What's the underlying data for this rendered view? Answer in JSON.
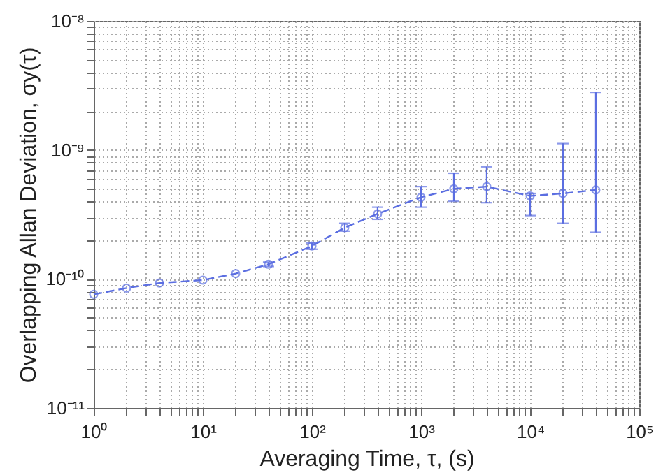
{
  "chart_data": {
    "type": "line",
    "xlabel": "Averaging Time, τ, (s)",
    "ylabel": "Overlapping Allan Deviation, σy(τ)",
    "x": [
      1,
      2,
      4,
      10,
      20,
      40,
      100,
      200,
      400,
      1000,
      2000,
      4000,
      10000,
      20000,
      40000
    ],
    "series": [
      {
        "color": "#5b6ee1",
        "values": [
          7.6e-11,
          8.5e-11,
          9.3e-11,
          9.8e-11,
          1.1e-10,
          1.3e-10,
          1.8e-10,
          2.5e-10,
          3.2e-10,
          4.3e-10,
          5e-10,
          5.2e-10,
          4.4e-10,
          4.6e-10,
          4.9e-10
        ],
        "errors": [
          null,
          null,
          null,
          null,
          null,
          [
            1.25e-10,
            1.35e-10
          ],
          [
            1.7e-10,
            1.9e-10
          ],
          [
            2.35e-10,
            2.7e-10
          ],
          [
            2.9e-10,
            3.6e-10
          ],
          [
            3.6e-10,
            5.2e-10
          ],
          [
            4e-10,
            6.6e-10
          ],
          [
            3.9e-10,
            7.4e-10
          ],
          [
            3.1e-10,
            4.6e-10
          ],
          [
            2.7e-10,
            1.12e-09
          ],
          [
            2.3e-10,
            2.8e-09
          ]
        ]
      }
    ],
    "log": "xy",
    "marker": "circle",
    "line_style": "dashed",
    "grid": true,
    "xlim": [
      1,
      100000
    ],
    "ylim": [
      1e-11,
      1e-08
    ],
    "xticks": [
      {
        "value": 1,
        "label": "10⁰"
      },
      {
        "value": 2,
        "label": null
      },
      {
        "value": 3,
        "label": null
      },
      {
        "value": 4,
        "label": null
      },
      {
        "value": 5,
        "label": null
      },
      {
        "value": 6,
        "label": null
      },
      {
        "value": 7,
        "label": null
      },
      {
        "value": 8,
        "label": null
      },
      {
        "value": 9,
        "label": null
      },
      {
        "value": 10,
        "label": "10¹"
      },
      {
        "value": 20,
        "label": null
      },
      {
        "value": 30,
        "label": null
      },
      {
        "value": 40,
        "label": null
      },
      {
        "value": 50,
        "label": null
      },
      {
        "value": 60,
        "label": null
      },
      {
        "value": 70,
        "label": null
      },
      {
        "value": 80,
        "label": null
      },
      {
        "value": 90,
        "label": null
      },
      {
        "value": 100,
        "label": "10²"
      },
      {
        "value": 200,
        "label": null
      },
      {
        "value": 300,
        "label": null
      },
      {
        "value": 400,
        "label": null
      },
      {
        "value": 500,
        "label": null
      },
      {
        "value": 600,
        "label": null
      },
      {
        "value": 700,
        "label": null
      },
      {
        "value": 800,
        "label": null
      },
      {
        "value": 900,
        "label": null
      },
      {
        "value": 1000,
        "label": "10³"
      },
      {
        "value": 2000,
        "label": null
      },
      {
        "value": 3000,
        "label": null
      },
      {
        "value": 4000,
        "label": null
      },
      {
        "value": 5000,
        "label": null
      },
      {
        "value": 6000,
        "label": null
      },
      {
        "value": 7000,
        "label": null
      },
      {
        "value": 8000,
        "label": null
      },
      {
        "value": 9000,
        "label": null
      },
      {
        "value": 10000,
        "label": "10⁴"
      },
      {
        "value": 20000,
        "label": null
      },
      {
        "value": 30000,
        "label": null
      },
      {
        "value": 40000,
        "label": null
      },
      {
        "value": 50000,
        "label": null
      },
      {
        "value": 60000,
        "label": null
      },
      {
        "value": 70000,
        "label": null
      },
      {
        "value": 80000,
        "label": null
      },
      {
        "value": 90000,
        "label": null
      },
      {
        "value": 100000,
        "label": "10⁵"
      }
    ],
    "yticks": [
      {
        "value": 1e-11,
        "label": "10⁻¹¹"
      },
      {
        "value": 2e-11,
        "label": null
      },
      {
        "value": 3e-11,
        "label": null
      },
      {
        "value": 4e-11,
        "label": null
      },
      {
        "value": 5e-11,
        "label": null
      },
      {
        "value": 6e-11,
        "label": null
      },
      {
        "value": 7e-11,
        "label": null
      },
      {
        "value": 8e-11,
        "label": null
      },
      {
        "value": 9e-11,
        "label": null
      },
      {
        "value": 1e-10,
        "label": "10⁻¹⁰"
      },
      {
        "value": 2e-10,
        "label": null
      },
      {
        "value": 3e-10,
        "label": null
      },
      {
        "value": 4e-10,
        "label": null
      },
      {
        "value": 5e-10,
        "label": null
      },
      {
        "value": 6e-10,
        "label": null
      },
      {
        "value": 7e-10,
        "label": null
      },
      {
        "value": 8e-10,
        "label": null
      },
      {
        "value": 9e-10,
        "label": null
      },
      {
        "value": 1e-09,
        "label": "10⁻⁹"
      },
      {
        "value": 2e-09,
        "label": null
      },
      {
        "value": 3e-09,
        "label": null
      },
      {
        "value": 4e-09,
        "label": null
      },
      {
        "value": 5e-09,
        "label": null
      },
      {
        "value": 6e-09,
        "label": null
      },
      {
        "value": 7e-09,
        "label": null
      },
      {
        "value": 8e-09,
        "label": null
      },
      {
        "value": 9e-09,
        "label": null
      },
      {
        "value": 1e-08,
        "label": "10⁻⁸"
      }
    ]
  }
}
